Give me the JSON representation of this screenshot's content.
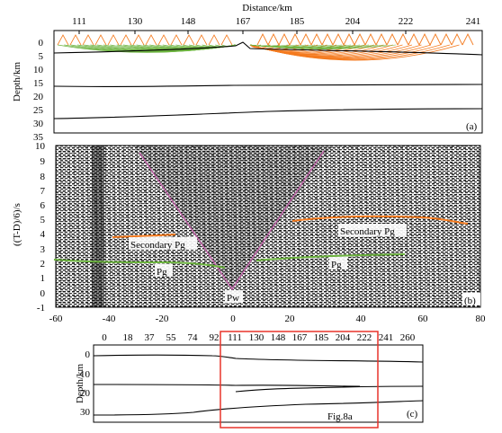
{
  "panel_a": {
    "top_title": "Distance/km",
    "top_ticks": [
      "111",
      "130",
      "148",
      "167",
      "185",
      "204",
      "222",
      "241"
    ],
    "depth_label": "Depth/km",
    "depth_ticks": [
      "0",
      "5",
      "10",
      "15",
      "20",
      "25",
      "30",
      "35"
    ],
    "tag": "(a)"
  },
  "panel_b": {
    "ylabel": "((T-D)/6)/s",
    "y_ticks": [
      "10",
      "9",
      "8",
      "7",
      "6",
      "5",
      "4",
      "3",
      "2",
      "1",
      "0",
      "-1"
    ],
    "x_ticks": [
      "-60",
      "-40",
      "-20",
      "0",
      "20",
      "40",
      "60",
      "80"
    ],
    "labels": {
      "secondary_pg_left": "Secondary Pg",
      "secondary_pg_right": "Secondary Pg",
      "pg_left": "Pg",
      "pg_right": "Pg",
      "pw": "Pw"
    },
    "tag": "(b)"
  },
  "panel_c": {
    "top_ticks": [
      "0",
      "18",
      "37",
      "55",
      "74",
      "92",
      "111",
      "130",
      "148",
      "167",
      "185",
      "204",
      "222",
      "241",
      "260"
    ],
    "depth_label": "Depth/km",
    "depth_ticks": [
      "0",
      "10",
      "20",
      "30"
    ],
    "box_label": "Fig.8a",
    "tag": "(c)"
  },
  "colors": {
    "green_rays": "#6cb33f",
    "orange_rays": "#f47b20",
    "box": "#e8332a",
    "pink_curve": "#c060a8"
  }
}
